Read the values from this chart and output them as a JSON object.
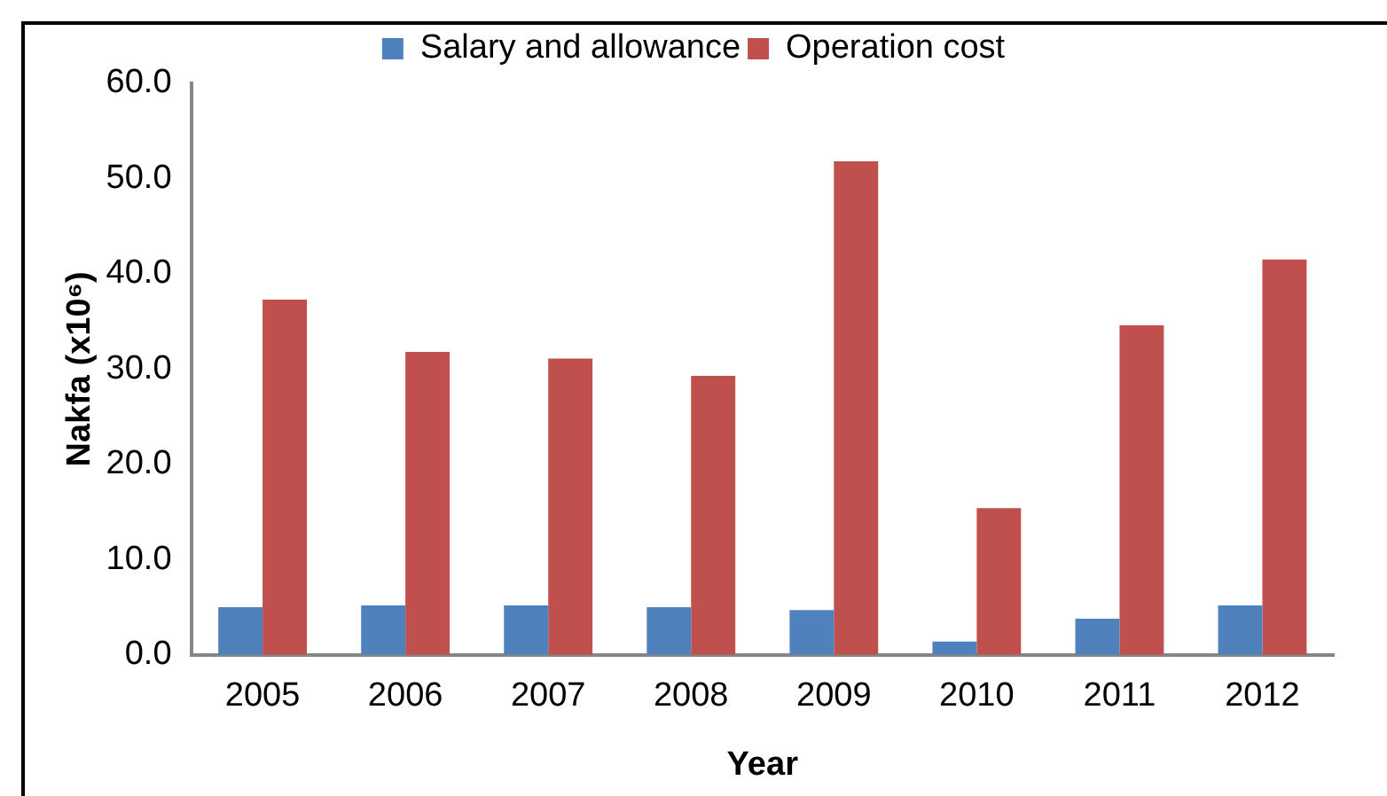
{
  "chart_data": {
    "type": "bar",
    "xlabel": "Year",
    "ylabel": "Nakfa (x10⁶)",
    "categories": [
      "2005",
      "2006",
      "2007",
      "2008",
      "2009",
      "2010",
      "2011",
      "2012"
    ],
    "series": [
      {
        "name": "Salary and allowance",
        "color": "#4f81bd",
        "values": [
          5.0,
          5.2,
          5.2,
          5.0,
          4.7,
          1.4,
          3.8,
          5.2
        ]
      },
      {
        "name": "Operation cost",
        "color": "#c0504d",
        "values": [
          37.3,
          31.8,
          31.1,
          29.3,
          51.8,
          15.4,
          34.6,
          41.5
        ]
      }
    ],
    "ylim": [
      0,
      60
    ],
    "yticks": [
      {
        "value": 0,
        "label": "0.0"
      },
      {
        "value": 10,
        "label": "10.0"
      },
      {
        "value": 20,
        "label": "20.0"
      },
      {
        "value": 30,
        "label": "30.0"
      },
      {
        "value": 40,
        "label": "40.0"
      },
      {
        "value": 50,
        "label": "50.0"
      },
      {
        "value": 60,
        "label": "60.0"
      }
    ],
    "grid": false,
    "legend": "top"
  }
}
